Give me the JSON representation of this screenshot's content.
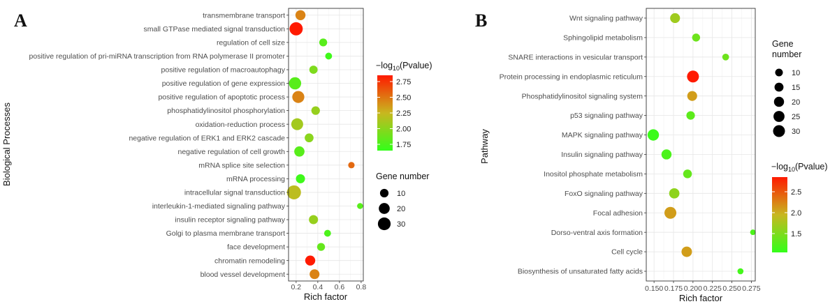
{
  "colors": {
    "low": "#33ff1a",
    "mid": "#c8b71f",
    "high": "#ff1a00"
  },
  "chart_data": [
    {
      "panel_label": "A",
      "type": "scatter",
      "xlabel": "Rich factor",
      "ylabel": "Biological Processes",
      "xlim": [
        0.13,
        0.82
      ],
      "xticks": [
        "0.2",
        "0.4",
        "0.6",
        "0.8"
      ],
      "xtick_values": [
        0.2,
        0.4,
        0.6,
        0.8
      ],
      "color_legend": {
        "title": "-log10(Pvalue)",
        "ticks": [
          "2.75",
          "2.50",
          "2.25",
          "2.00",
          "1.75"
        ],
        "tick_values": [
          2.75,
          2.5,
          2.25,
          2.0,
          1.75
        ],
        "range": [
          1.65,
          2.85
        ]
      },
      "size_legend": {
        "title": "Gene number",
        "labels": [
          "10",
          "20",
          "30"
        ],
        "values": [
          10,
          20,
          30
        ]
      },
      "categories": [
        "transmembrane transport",
        "small GTPase mediated signal transduction",
        "regulation of cell size",
        "positive regulation of pri-miRNA transcription from RNA polymerase II promoter",
        "positive regulation of macroautophagy",
        "positive regulation of gene expression",
        "positive regulation of apoptotic process",
        "phosphatidylinositol phosphorylation",
        "oxidation-reduction process",
        "negative regulation of ERK1 and ERK2 cascade",
        "negative regulation of cell growth",
        "mRNA splice site selection",
        "mRNA processing",
        "intracellular signal transduction",
        "interleukin-1-mediated signaling pathway",
        "insulin receptor signaling pathway",
        "Golgi to plasma membrane transport",
        "face development",
        "chromatin remodeling",
        "blood vessel development"
      ],
      "points": [
        {
          "x": 0.24,
          "gene": 16,
          "p": 2.45
        },
        {
          "x": 0.2,
          "gene": 33,
          "p": 2.85
        },
        {
          "x": 0.45,
          "gene": 8,
          "p": 1.8
        },
        {
          "x": 0.5,
          "gene": 5,
          "p": 1.7
        },
        {
          "x": 0.36,
          "gene": 9,
          "p": 1.95
        },
        {
          "x": 0.19,
          "gene": 27,
          "p": 1.8
        },
        {
          "x": 0.22,
          "gene": 26,
          "p": 2.45
        },
        {
          "x": 0.38,
          "gene": 10,
          "p": 2.05
        },
        {
          "x": 0.21,
          "gene": 25,
          "p": 2.1
        },
        {
          "x": 0.32,
          "gene": 11,
          "p": 2.0
        },
        {
          "x": 0.23,
          "gene": 17,
          "p": 1.8
        },
        {
          "x": 0.71,
          "gene": 4,
          "p": 2.55
        },
        {
          "x": 0.24,
          "gene": 12,
          "p": 1.7
        },
        {
          "x": 0.18,
          "gene": 38,
          "p": 2.2
        },
        {
          "x": 0.79,
          "gene": 3,
          "p": 1.8
        },
        {
          "x": 0.36,
          "gene": 12,
          "p": 2.05
        },
        {
          "x": 0.49,
          "gene": 5,
          "p": 1.75
        },
        {
          "x": 0.43,
          "gene": 8,
          "p": 1.85
        },
        {
          "x": 0.33,
          "gene": 16,
          "p": 2.85
        },
        {
          "x": 0.37,
          "gene": 15,
          "p": 2.45
        }
      ]
    },
    {
      "panel_label": "B",
      "type": "scatter",
      "xlabel": "Rich factor",
      "ylabel": "Pathway",
      "xlim": [
        0.14,
        0.28
      ],
      "xticks": [
        "0.150",
        "0.175",
        "0.200",
        "0.225",
        "0.250",
        "0.275"
      ],
      "xtick_values": [
        0.15,
        0.175,
        0.2,
        0.225,
        0.25,
        0.275
      ],
      "xticks_compact": [
        "0.150.1750.2000.2250.2500.275"
      ],
      "color_legend": {
        "title": "-log10(Pvalue)",
        "ticks": [
          "2.5",
          "2.0",
          "1.5"
        ],
        "tick_values": [
          2.5,
          2.0,
          1.5
        ],
        "range": [
          1.05,
          2.85
        ]
      },
      "size_legend": {
        "title_lines": [
          "Gene",
          "number"
        ],
        "labels": [
          "10",
          "15",
          "20",
          "25",
          "30"
        ],
        "values": [
          10,
          15,
          20,
          25,
          30
        ]
      },
      "categories": [
        "Wnt signaling pathway",
        "Sphingolipid metabolism",
        "SNARE interactions in vesicular transport",
        "Protein processing in endoplasmic reticulum",
        "Phosphatidylinositol signaling system",
        "p53 signaling pathway",
        "MAPK signaling pathway",
        "Insulin signaling pathway",
        "Inositol phosphate metabolism",
        "FoxO signaling pathway",
        "Focal adhesion",
        "Dorso-ventral axis formation",
        "Cell cycle",
        "Biosynthesis of unsaturated fatty acids"
      ],
      "points": [
        {
          "x": 0.177,
          "gene": 19,
          "p": 1.7
        },
        {
          "x": 0.204,
          "gene": 11,
          "p": 1.4
        },
        {
          "x": 0.242,
          "gene": 7,
          "p": 1.4
        },
        {
          "x": 0.2,
          "gene": 30,
          "p": 2.85
        },
        {
          "x": 0.199,
          "gene": 19,
          "p": 2.1
        },
        {
          "x": 0.197,
          "gene": 13,
          "p": 1.3
        },
        {
          "x": 0.149,
          "gene": 27,
          "p": 1.1
        },
        {
          "x": 0.166,
          "gene": 20,
          "p": 1.2
        },
        {
          "x": 0.193,
          "gene": 14,
          "p": 1.35
        },
        {
          "x": 0.176,
          "gene": 21,
          "p": 1.6
        },
        {
          "x": 0.171,
          "gene": 30,
          "p": 2.1
        },
        {
          "x": 0.277,
          "gene": 4,
          "p": 1.2
        },
        {
          "x": 0.192,
          "gene": 22,
          "p": 2.1
        },
        {
          "x": 0.261,
          "gene": 5,
          "p": 1.15
        }
      ]
    }
  ]
}
